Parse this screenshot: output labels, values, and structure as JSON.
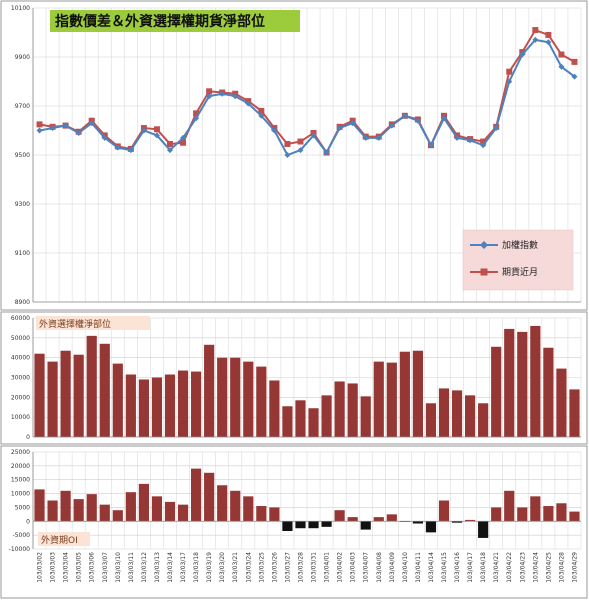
{
  "chart_data": [
    {
      "type": "line",
      "title": "指數價差＆外資選擇權期貨淨部位",
      "title_bg_color": "#9ccc3c",
      "ylim": [
        8900,
        10100
      ],
      "yticks": [
        8900,
        9100,
        9300,
        9500,
        9700,
        9900,
        10100
      ],
      "grid": true,
      "legend": "right",
      "legend_bg_color": "#f6d9d9",
      "series": [
        {
          "name": "加權指數",
          "color": "#4f81bd",
          "marker": "diamond",
          "values": [
            9600,
            9610,
            9620,
            9590,
            9630,
            9570,
            9530,
            9520,
            9600,
            9580,
            9520,
            9570,
            9650,
            9740,
            9750,
            9740,
            9710,
            9660,
            9600,
            9500,
            9520,
            9580,
            9510,
            9610,
            9630,
            9570,
            9570,
            9620,
            9660,
            9640,
            9540,
            9650,
            9570,
            9560,
            9540,
            9610,
            9800,
            9910,
            9970,
            9960,
            9860,
            9820
          ]
        },
        {
          "name": "期貨近月",
          "color": "#c0504d",
          "marker": "square",
          "values": [
            9625,
            9615,
            9620,
            9595,
            9640,
            9580,
            9535,
            9525,
            9610,
            9605,
            9545,
            9550,
            9670,
            9760,
            9755,
            9750,
            9720,
            9680,
            9610,
            9545,
            9555,
            9590,
            9510,
            9615,
            9640,
            9575,
            9575,
            9625,
            9660,
            9645,
            9540,
            9660,
            9580,
            9565,
            9555,
            9615,
            9840,
            9920,
            10010,
            9990,
            9910,
            9880
          ]
        }
      ]
    },
    {
      "type": "bar",
      "label": "外資選擇權淨部位",
      "color": "#953735",
      "ylim": [
        0,
        60000
      ],
      "yticks": [
        0,
        10000,
        20000,
        30000,
        40000,
        50000,
        60000
      ],
      "grid": true,
      "values": [
        42000,
        38000,
        43500,
        41500,
        51000,
        47000,
        37000,
        31500,
        29000,
        30000,
        31500,
        33500,
        33000,
        46500,
        40000,
        40000,
        38000,
        35500,
        28500,
        15500,
        18500,
        14500,
        21000,
        28000,
        27000,
        20500,
        38000,
        37500,
        43000,
        43500,
        17000,
        24500,
        23500,
        21000,
        17000,
        45500,
        54500,
        53000,
        56000,
        45000,
        34500,
        24000
      ]
    },
    {
      "type": "bar",
      "label": "外資期OI",
      "positive_color": "#953735",
      "negative_color": "#111111",
      "ylim": [
        -10000,
        25000
      ],
      "yticks": [
        -10000,
        -5000,
        0,
        5000,
        10000,
        15000,
        20000,
        25000
      ],
      "grid": true,
      "categories": [
        "103/03/02",
        "103/03/03",
        "103/03/04",
        "103/03/05",
        "103/03/06",
        "103/03/07",
        "103/03/10",
        "103/03/11",
        "103/03/12",
        "103/03/13",
        "103/03/14",
        "103/03/17",
        "103/03/18",
        "103/03/19",
        "103/03/20",
        "103/03/21",
        "103/03/24",
        "103/03/25",
        "103/03/26",
        "103/03/27",
        "103/03/28",
        "103/03/31",
        "103/04/01",
        "103/04/02",
        "103/04/03",
        "103/04/07",
        "103/04/08",
        "103/04/09",
        "103/04/10",
        "103/04/11",
        "103/04/14",
        "103/04/15",
        "103/04/16",
        "103/04/17",
        "103/04/18",
        "103/04/21",
        "103/04/22",
        "103/04/23",
        "103/04/24",
        "103/04/25",
        "103/04/28",
        "103/04/29"
      ],
      "values": [
        11500,
        7500,
        11000,
        8000,
        9800,
        6000,
        4000,
        10500,
        13500,
        9000,
        7000,
        6000,
        19000,
        17500,
        13000,
        11000,
        9000,
        5500,
        5000,
        -3500,
        -2500,
        -2500,
        -2000,
        4000,
        1500,
        -3000,
        1500,
        2500,
        -200,
        -800,
        -4000,
        7500,
        -500,
        500,
        -6000,
        5000,
        11000,
        5000,
        9000,
        5500,
        6500,
        3500
      ]
    }
  ],
  "x_tick_labels": [
    "103/03/02",
    "103/03/03",
    "103/03/04",
    "103/03/05",
    "103/03/06",
    "103/03/07",
    "103/03/10",
    "103/03/11",
    "103/03/12",
    "103/03/13",
    "103/03/14",
    "103/03/17",
    "103/03/18",
    "103/03/19",
    "103/03/20",
    "103/03/21",
    "103/03/24",
    "103/03/25",
    "103/03/26",
    "103/03/27",
    "103/03/28",
    "103/03/31",
    "103/04/01",
    "103/04/02",
    "103/04/03",
    "103/04/07",
    "103/04/08",
    "103/04/09",
    "103/04/10",
    "103/04/11",
    "103/04/14",
    "103/04/15",
    "103/04/16",
    "103/04/17",
    "103/04/18",
    "103/04/21",
    "103/04/22",
    "103/04/23",
    "103/04/24",
    "103/04/25",
    "103/04/28",
    "103/04/29"
  ]
}
